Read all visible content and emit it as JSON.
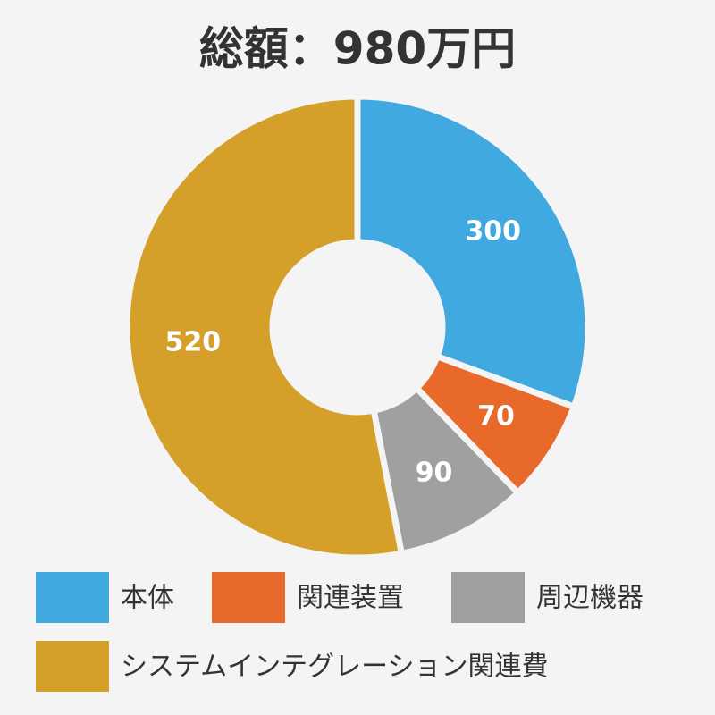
{
  "chart_data": {
    "type": "donut",
    "title": "総額：980万円",
    "categories": [
      "本体",
      "関連装置",
      "周辺機器",
      "システムインテグレーション関連費"
    ],
    "values": [
      300,
      70,
      90,
      520
    ],
    "colors": [
      "#3fa9e0",
      "#e8692a",
      "#a0a0a0",
      "#d4a02a"
    ]
  }
}
